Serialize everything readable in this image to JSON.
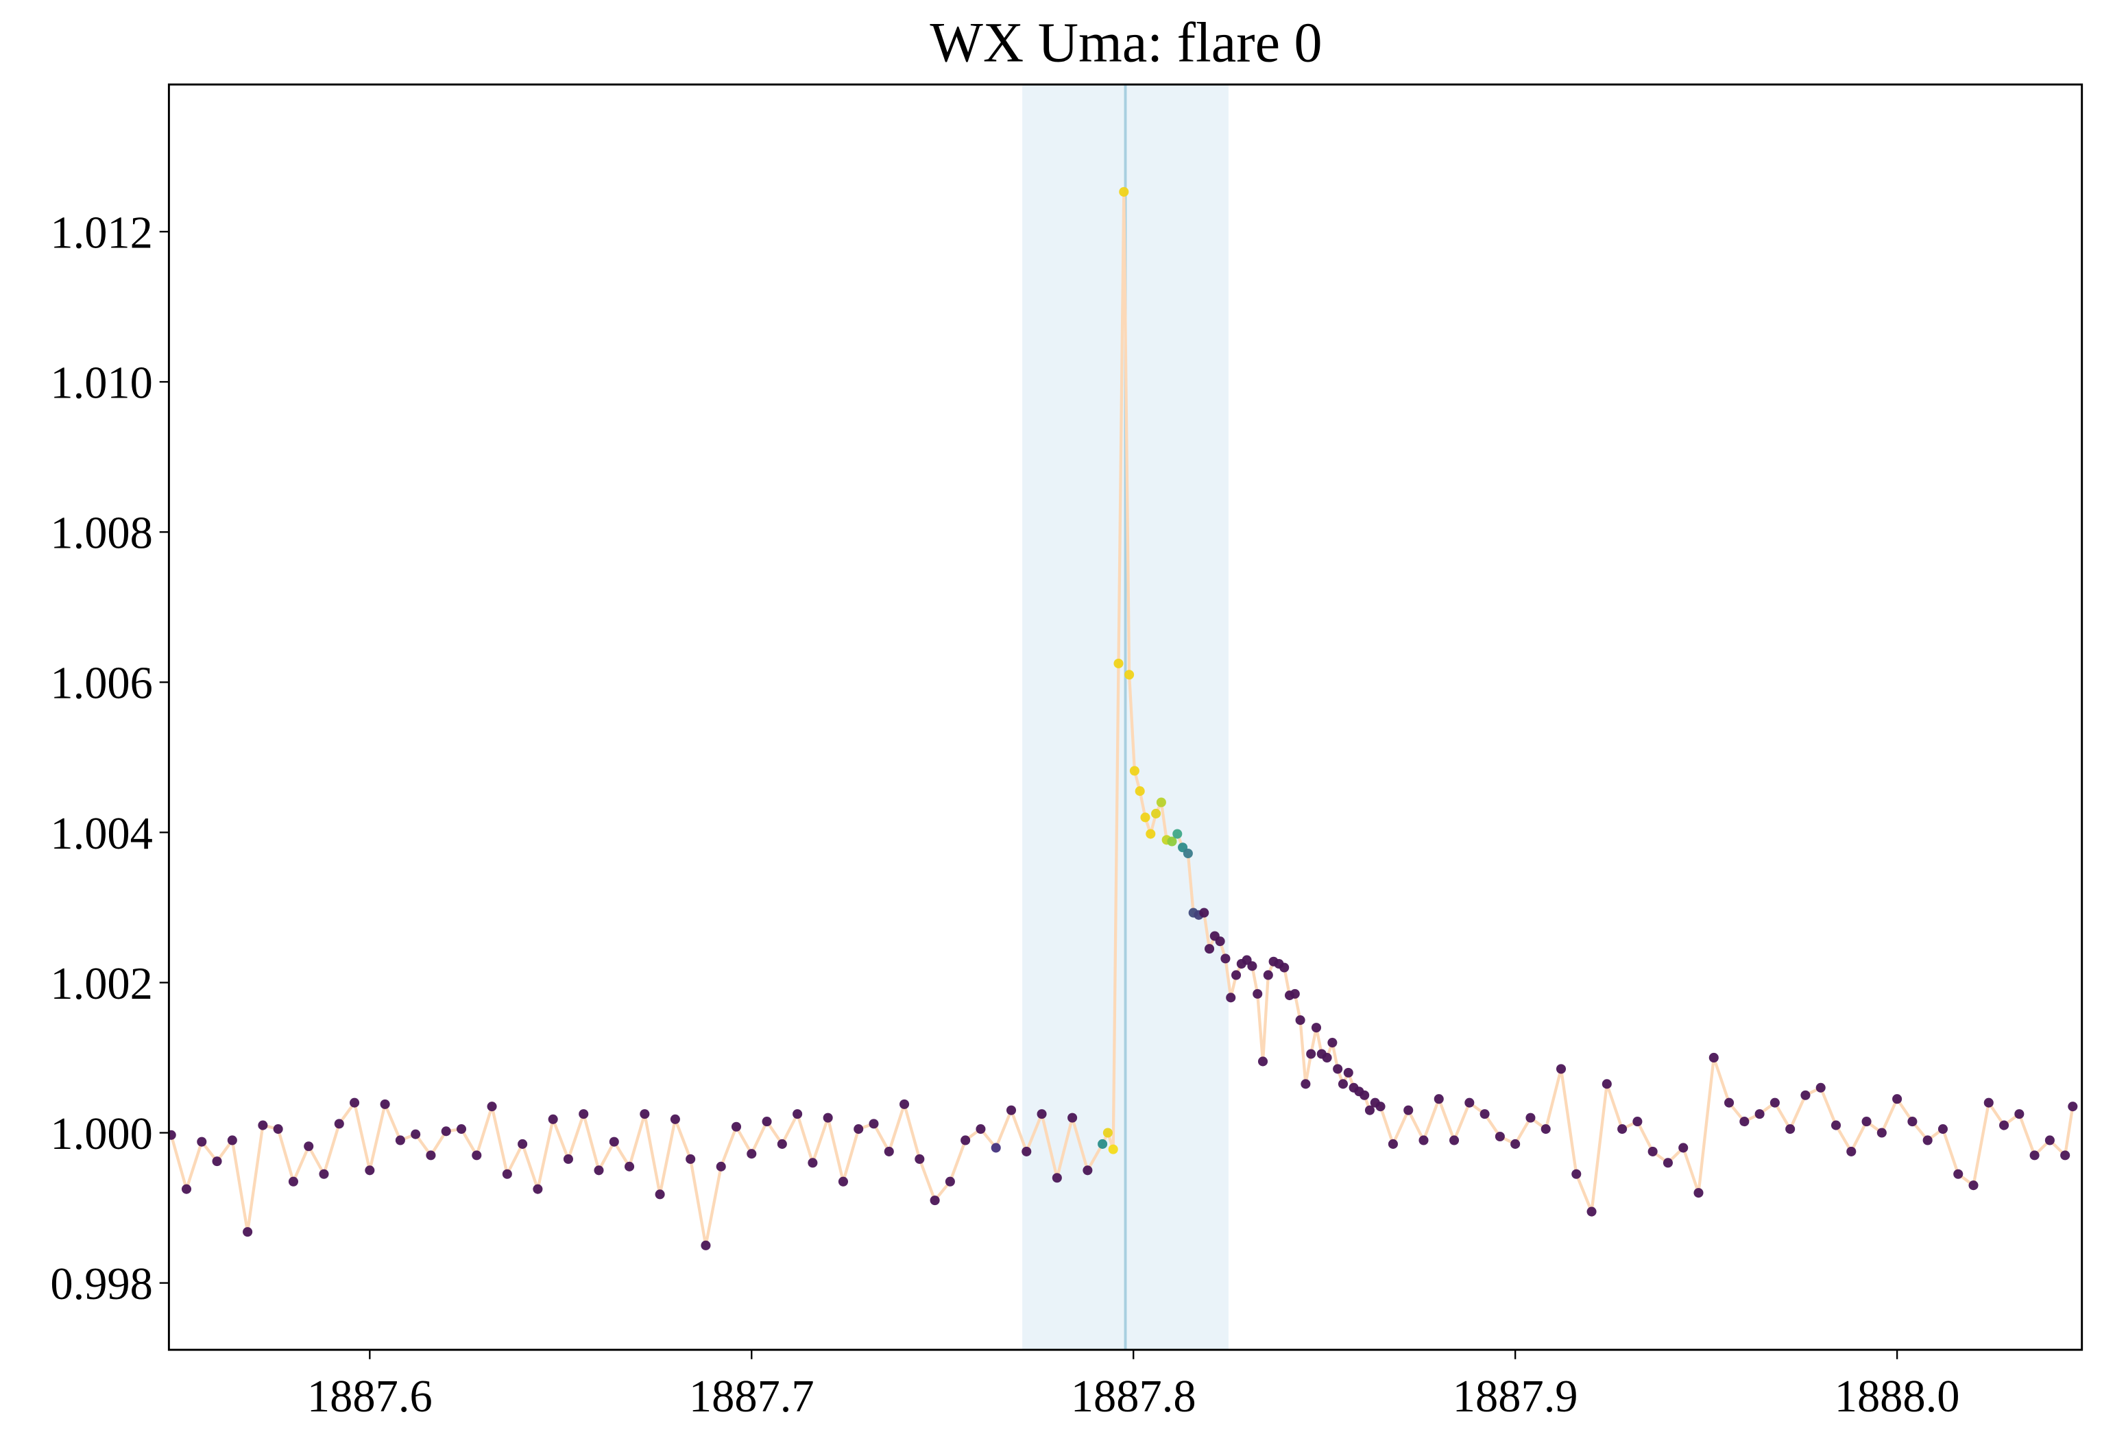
{
  "chart_data": {
    "type": "scatter",
    "title": "WX Uma: flare 0",
    "xlim": [
      1887.5474,
      1888.0484
    ],
    "ylim": [
      0.99711,
      1.01396
    ],
    "xticks": [
      1887.6,
      1887.7,
      1887.8,
      1887.9,
      {
        "value": 1888,
        "label": "1888.0"
      }
    ],
    "yticks": [
      0.998,
      {
        "value": 1,
        "label": "1.000"
      },
      1.002,
      1.004,
      1.006,
      1.008,
      {
        "value": 1.01,
        "label": "1.010"
      },
      1.012
    ],
    "grid": false,
    "line_color": "#fcd9b8",
    "span": [
      1887.7709,
      1887.8249
    ],
    "span_color": "#eaf3f9",
    "vline": 1887.7979,
    "vline_color": "#a8cfe0",
    "x": [
      1887.548,
      1887.552,
      1887.556,
      1887.56,
      1887.564,
      1887.568,
      1887.572,
      1887.576,
      1887.58,
      1887.584,
      1887.588,
      1887.592,
      1887.596,
      1887.6,
      1887.604,
      1887.608,
      1887.612,
      1887.616,
      1887.62,
      1887.624,
      1887.628,
      1887.632,
      1887.636,
      1887.64,
      1887.644,
      1887.648,
      1887.652,
      1887.656,
      1887.66,
      1887.664,
      1887.668,
      1887.672,
      1887.676,
      1887.68,
      1887.684,
      1887.688,
      1887.692,
      1887.696,
      1887.7,
      1887.704,
      1887.708,
      1887.712,
      1887.716,
      1887.72,
      1887.724,
      1887.728,
      1887.732,
      1887.736,
      1887.74,
      1887.744,
      1887.748,
      1887.752,
      1887.756,
      1887.76,
      1887.764,
      1887.768,
      1887.772,
      1887.776,
      1887.78,
      1887.784,
      1887.788,
      1887.7919,
      1887.7933,
      1887.7947,
      1887.7961,
      1887.7975,
      1887.7989,
      1887.8003,
      1887.8017,
      1887.8031,
      1887.8045,
      1887.8059,
      1887.8073,
      1887.8087,
      1887.8101,
      1887.8115,
      1887.8129,
      1887.8143,
      1887.8157,
      1887.8171,
      1887.8185,
      1887.8199,
      1887.8213,
      1887.8227,
      1887.8241,
      1887.8255,
      1887.8269,
      1887.8283,
      1887.8297,
      1887.8311,
      1887.8325,
      1887.8339,
      1887.8353,
      1887.8367,
      1887.8381,
      1887.8395,
      1887.8409,
      1887.8423,
      1887.8437,
      1887.8451,
      1887.8465,
      1887.8479,
      1887.8493,
      1887.8507,
      1887.8521,
      1887.8535,
      1887.8549,
      1887.8563,
      1887.8577,
      1887.8591,
      1887.8605,
      1887.8619,
      1887.8633,
      1887.8647,
      1887.868,
      1887.872,
      1887.876,
      1887.88,
      1887.884,
      1887.888,
      1887.892,
      1887.896,
      1887.9,
      1887.904,
      1887.908,
      1887.912,
      1887.916,
      1887.92,
      1887.924,
      1887.928,
      1887.932,
      1887.936,
      1887.94,
      1887.944,
      1887.948,
      1887.952,
      1887.956,
      1887.96,
      1887.964,
      1887.968,
      1887.972,
      1887.976,
      1887.98,
      1887.984,
      1887.988,
      1887.992,
      1887.996,
      1888.0,
      1888.004,
      1888.008,
      1888.012,
      1888.016,
      1888.02,
      1888.024,
      1888.028,
      1888.032,
      1888.036,
      1888.04,
      1888.044,
      1888.046
    ],
    "values": [
      0.99997,
      0.99925,
      0.99988,
      0.99962,
      0.9999,
      0.99868,
      1.0001,
      1.00005,
      0.99935,
      0.99982,
      0.99945,
      1.00012,
      1.0004,
      0.9995,
      1.00038,
      0.9999,
      0.99998,
      0.9997,
      1.00002,
      1.00005,
      0.9997,
      1.00035,
      0.99945,
      0.99985,
      0.99925,
      1.00018,
      0.99965,
      1.00025,
      0.9995,
      0.99988,
      0.99955,
      1.00025,
      0.99918,
      1.00018,
      0.99965,
      0.9985,
      0.99955,
      1.00008,
      0.99972,
      1.00015,
      0.99985,
      1.00025,
      0.9996,
      1.0002,
      0.99935,
      1.00005,
      1.00012,
      0.99975,
      1.00038,
      0.99965,
      0.9991,
      0.99935,
      0.9999,
      1.00005,
      0.9998,
      1.0003,
      0.99975,
      1.00025,
      0.9994,
      1.0002,
      0.9995,
      0.99985,
      1.0,
      0.99978,
      1.00625,
      1.01253,
      1.0061,
      1.00482,
      1.00455,
      1.0042,
      1.00398,
      1.00425,
      1.0044,
      1.0039,
      1.00388,
      1.00398,
      1.0038,
      1.00372,
      1.00293,
      1.0029,
      1.00293,
      1.00245,
      1.00262,
      1.00255,
      1.00232,
      1.0018,
      1.0021,
      1.00225,
      1.0023,
      1.00222,
      1.00185,
      1.00095,
      1.0021,
      1.00228,
      1.00225,
      1.0022,
      1.00183,
      1.00185,
      1.0015,
      1.00065,
      1.00105,
      1.0014,
      1.00105,
      1.001,
      1.0012,
      1.00085,
      1.00065,
      1.0008,
      1.0006,
      1.00055,
      1.0005,
      1.0003,
      1.0004,
      1.00035,
      0.99985,
      1.0003,
      0.9999,
      1.00045,
      0.9999,
      1.0004,
      1.00025,
      0.99995,
      0.99985,
      1.0002,
      1.00005,
      1.00085,
      0.99945,
      0.99895,
      1.00065,
      1.00005,
      1.00015,
      0.99975,
      0.9996,
      0.9998,
      0.9992,
      1.001,
      1.0004,
      1.00015,
      1.00025,
      1.0004,
      1.00005,
      1.0005,
      1.0006,
      1.0001,
      0.99975,
      1.00015,
      1.0,
      1.00045,
      1.00015,
      0.9999,
      1.00005,
      0.99945,
      0.9993,
      1.0004,
      1.0001,
      1.00025,
      0.9997,
      0.9999,
      0.9997,
      1.00035
    ],
    "point_colors": [
      "#4b1657",
      "#4b1657",
      "#4b1657",
      "#4b1657",
      "#4b1657",
      "#4b1657",
      "#4b1657",
      "#4b1657",
      "#4b1657",
      "#4b1657",
      "#4b1657",
      "#4b1657",
      "#4b1657",
      "#4b1657",
      "#4b1657",
      "#4b1657",
      "#4b1657",
      "#4b1657",
      "#4b1657",
      "#4b1657",
      "#4b1657",
      "#4b1657",
      "#4b1657",
      "#4b1657",
      "#4b1657",
      "#4b1657",
      "#4b1657",
      "#4b1657",
      "#4b1657",
      "#4b1657",
      "#4b1657",
      "#4b1657",
      "#4b1657",
      "#4b1657",
      "#4b1657",
      "#4b1657",
      "#4b1657",
      "#4b1657",
      "#4b1657",
      "#4b1657",
      "#4b1657",
      "#4b1657",
      "#4b1657",
      "#4b1657",
      "#4b1657",
      "#4b1657",
      "#4b1657",
      "#4b1657",
      "#4b1657",
      "#4b1657",
      "#4b1657",
      "#4b1657",
      "#4b1657",
      "#4b1657",
      "#46337e",
      "#4b1657",
      "#4b1657",
      "#4b1657",
      "#4b1657",
      "#4b1657",
      "#4b1657",
      "#2a8e8a",
      "#ead21f",
      "#f4db1b",
      "#f0d31a",
      "#f0d31a",
      "#f0d31a",
      "#f0d31a",
      "#f0d31a",
      "#f0d31a",
      "#f0d31a",
      "#e1d21f",
      "#b8d22c",
      "#c4d528",
      "#8fcc3d",
      "#3fa888",
      "#2e8d8b",
      "#3c7c8c",
      "#414b7c",
      "#42407a",
      "#4b1657",
      "#4b1657",
      "#4b1657",
      "#4b1657",
      "#4b1657",
      "#4b1657",
      "#4b1657",
      "#4b1657",
      "#4b1657",
      "#4b1657",
      "#4b1657",
      "#4b1657",
      "#4b1657",
      "#4b1657",
      "#4b1657",
      "#4b1657",
      "#4b1657",
      "#4b1657",
      "#4b1657",
      "#4b1657",
      "#4b1657",
      "#4b1657",
      "#4b1657",
      "#4b1657",
      "#4b1657",
      "#4b1657",
      "#4b1657",
      "#4b1657",
      "#4b1657",
      "#4b1657",
      "#4b1657",
      "#4b1657",
      "#4b1657",
      "#4b1657",
      "#4b1657",
      "#4b1657",
      "#4b1657",
      "#4b1657",
      "#4b1657",
      "#4b1657",
      "#4b1657",
      "#4b1657",
      "#4b1657",
      "#4b1657",
      "#4b1657",
      "#4b1657",
      "#4b1657",
      "#4b1657",
      "#4b1657",
      "#4b1657",
      "#4b1657",
      "#4b1657",
      "#4b1657",
      "#4b1657",
      "#4b1657",
      "#4b1657",
      "#4b1657",
      "#4b1657",
      "#4b1657",
      "#4b1657",
      "#4b1657",
      "#4b1657",
      "#4b1657",
      "#4b1657",
      "#4b1657",
      "#4b1657",
      "#4b1657",
      "#4b1657",
      "#4b1657",
      "#4b1657",
      "#4b1657",
      "#4b1657",
      "#4b1657",
      "#4b1657",
      "#4b1657",
      "#4b1657",
      "#4b1657",
      "#4b1657",
      "#4b1657",
      "#4b1657"
    ]
  }
}
